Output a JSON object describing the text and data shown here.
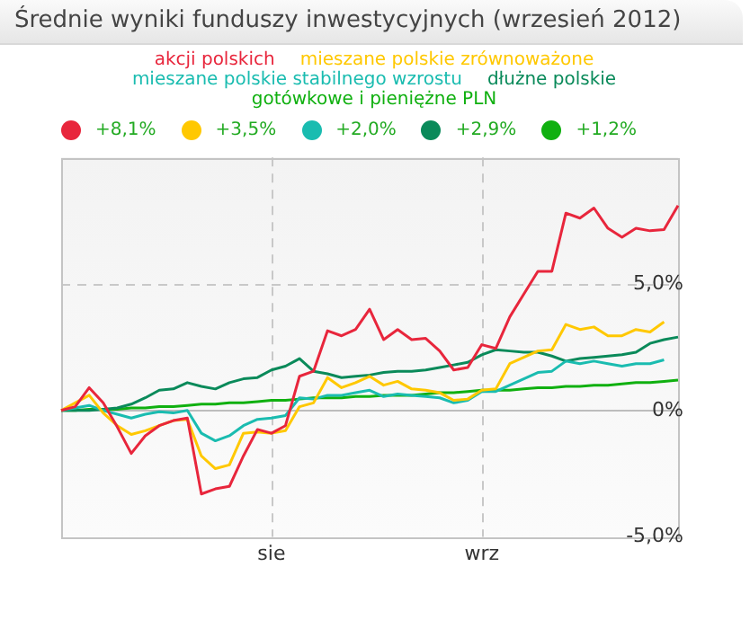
{
  "chart_data": {
    "type": "line",
    "title": "Średnie wyniki funduszy inwestycyjnych (wrzesień 2012)",
    "categories": [
      null,
      null,
      null,
      null,
      null,
      null,
      null,
      null,
      null,
      null,
      null,
      null,
      null,
      null,
      null,
      "sie",
      null,
      null,
      null,
      null,
      null,
      null,
      null,
      null,
      null,
      null,
      null,
      null,
      null,
      null,
      "wrz",
      null,
      null,
      null,
      null,
      null,
      null,
      null,
      null,
      null,
      null,
      null,
      null,
      null,
      null
    ],
    "ylim": [
      -5,
      10
    ],
    "yticks": [
      {
        "value": 5,
        "label": "5,0%"
      },
      {
        "value": 0,
        "label": "0%"
      },
      {
        "value": -5,
        "label": "-5,0%"
      }
    ],
    "annotations": [
      "+8,1%",
      "+3,5%",
      "+2,0%",
      "+2,9%",
      "+1,2%"
    ],
    "grid": true,
    "legend": "top",
    "marker": "none",
    "line_style": "solid",
    "series": [
      {
        "name": "akcji polskich",
        "color": "#e8263c",
        "values": [
          0,
          0.15,
          0.9,
          0.3,
          -0.65,
          -1.7,
          -1.0,
          -0.6,
          -0.4,
          -0.3,
          -3.3,
          -3.1,
          -3.0,
          -1.8,
          -0.75,
          -0.9,
          -0.6,
          1.35,
          1.55,
          3.15,
          2.95,
          3.2,
          4.0,
          2.8,
          3.2,
          2.8,
          2.85,
          2.35,
          1.6,
          1.7,
          2.6,
          2.45,
          3.7,
          4.6,
          5.5,
          5.5,
          7.8,
          7.6,
          8.0,
          7.2,
          6.85,
          7.2,
          7.1,
          7.15,
          8.1
        ]
      },
      {
        "name": "mieszane polskie zrównoważone",
        "color": "#ffc800",
        "values": [
          0,
          0.3,
          0.6,
          -0.1,
          -0.6,
          -0.95,
          -0.8,
          -0.6,
          -0.4,
          -0.35,
          -1.8,
          -2.3,
          -2.15,
          -0.9,
          -0.85,
          -0.9,
          -0.8,
          0.15,
          0.3,
          1.3,
          0.9,
          1.1,
          1.35,
          1.0,
          1.15,
          0.85,
          0.8,
          0.7,
          0.4,
          0.45,
          0.8,
          0.85,
          1.85,
          2.1,
          2.35,
          2.4,
          3.4,
          3.2,
          3.3,
          2.95,
          2.95,
          3.2,
          3.1,
          3.5,
          null
        ]
      },
      {
        "name": "mieszane polskie stabilnego wzrostu",
        "color": "#1abcb0",
        "values": [
          0,
          0.1,
          0.2,
          0,
          -0.15,
          -0.3,
          -0.15,
          -0.05,
          -0.1,
          0,
          -0.9,
          -1.2,
          -1.0,
          -0.6,
          -0.35,
          -0.3,
          -0.2,
          0.5,
          0.45,
          0.6,
          0.6,
          0.7,
          0.8,
          0.55,
          0.65,
          0.6,
          0.55,
          0.5,
          0.3,
          0.4,
          0.75,
          0.75,
          1.0,
          1.25,
          1.5,
          1.55,
          1.95,
          1.85,
          1.95,
          1.85,
          1.75,
          1.85,
          1.85,
          2.0,
          null
        ]
      },
      {
        "name": "dłużne polskie",
        "color": "#0a8a5a",
        "values": [
          0,
          0,
          0,
          0.05,
          0.1,
          0.25,
          0.5,
          0.8,
          0.85,
          1.1,
          0.95,
          0.85,
          1.1,
          1.25,
          1.3,
          1.6,
          1.75,
          2.05,
          1.55,
          1.45,
          1.3,
          1.35,
          1.4,
          1.5,
          1.55,
          1.55,
          1.6,
          1.7,
          1.8,
          1.9,
          2.2,
          2.4,
          2.35,
          2.3,
          2.3,
          2.15,
          1.95,
          2.05,
          2.1,
          2.15,
          2.2,
          2.3,
          2.65,
          2.8,
          2.9
        ]
      },
      {
        "name": "gotówkowe i pieniężne PLN",
        "color": "#10b010",
        "values": [
          0,
          0,
          0.05,
          0.05,
          0.05,
          0.1,
          0.1,
          0.15,
          0.15,
          0.2,
          0.25,
          0.25,
          0.3,
          0.3,
          0.35,
          0.4,
          0.4,
          0.45,
          0.5,
          0.5,
          0.5,
          0.55,
          0.55,
          0.6,
          0.6,
          0.6,
          0.65,
          0.7,
          0.7,
          0.75,
          0.8,
          0.8,
          0.8,
          0.85,
          0.9,
          0.9,
          0.95,
          0.95,
          1.0,
          1.0,
          1.05,
          1.1,
          1.1,
          1.15,
          1.2
        ]
      }
    ]
  }
}
